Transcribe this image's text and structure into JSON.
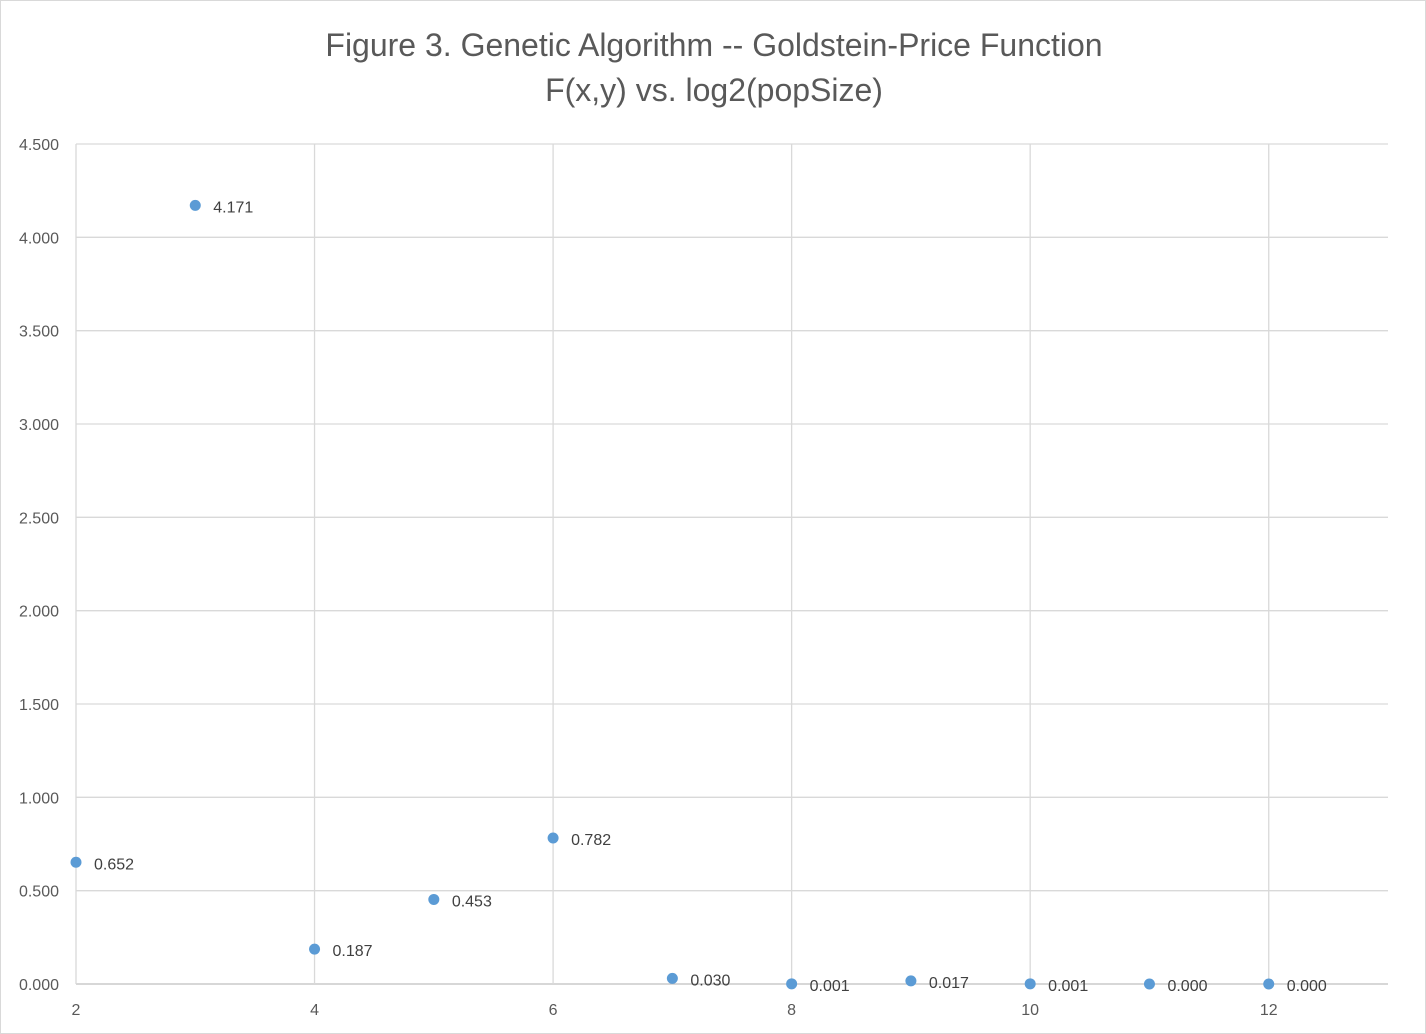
{
  "chart_data": {
    "type": "scatter",
    "title": "Figure 3. Genetic Algorithm -- Goldstein-Price Function",
    "subtitle": "F(x,y) vs. log2(popSize)",
    "xlabel": "",
    "ylabel": "",
    "xlim": [
      2,
      13
    ],
    "ylim": [
      0,
      4.5
    ],
    "x_ticks": [
      "2",
      "4",
      "6",
      "8",
      "10",
      "12"
    ],
    "y_ticks": [
      "0.000",
      "0.500",
      "1.000",
      "1.500",
      "2.000",
      "2.500",
      "3.000",
      "3.500",
      "4.000",
      "4.500"
    ],
    "grid": true,
    "legend": "none",
    "marker_color": "#5b9bd5",
    "points": [
      {
        "x": 2,
        "y": 0.652,
        "label": "0.652"
      },
      {
        "x": 3,
        "y": 4.171,
        "label": "4.171"
      },
      {
        "x": 4,
        "y": 0.187,
        "label": "0.187"
      },
      {
        "x": 5,
        "y": 0.453,
        "label": "0.453"
      },
      {
        "x": 6,
        "y": 0.782,
        "label": "0.782"
      },
      {
        "x": 7,
        "y": 0.03,
        "label": "0.030"
      },
      {
        "x": 8,
        "y": 0.001,
        "label": "0.001"
      },
      {
        "x": 9,
        "y": 0.017,
        "label": "0.017"
      },
      {
        "x": 10,
        "y": 0.001,
        "label": "0.001"
      },
      {
        "x": 11,
        "y": 0.0,
        "label": "0.000"
      },
      {
        "x": 12,
        "y": 0.0,
        "label": "0.000"
      }
    ]
  }
}
